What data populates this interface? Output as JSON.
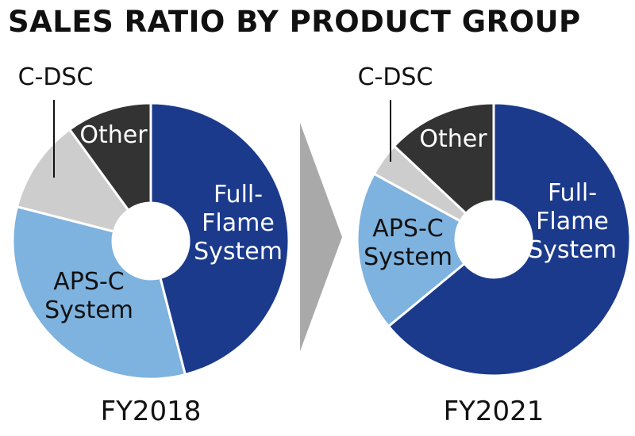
{
  "title": "SALES RATIO BY PRODUCT GROUP",
  "colors": {
    "full_flame": "#1b3a8c",
    "aps_c": "#7eb2df",
    "c_dsc": "#cdcdcd",
    "other": "#333333",
    "arrow": "#a9a9a9",
    "background": "#ffffff"
  },
  "chart_data": [
    {
      "type": "pie",
      "variant": "donut",
      "title": "FY2018",
      "slices": [
        {
          "label": "Full-Flame System",
          "lines": [
            "Full-",
            "Flame",
            "System"
          ],
          "value": 46,
          "color": "#1b3a8c",
          "text_color": "#ffffff"
        },
        {
          "label": "APS-C System",
          "lines": [
            "APS-C",
            "System"
          ],
          "value": 33,
          "color": "#7eb2df",
          "text_color": "#111111"
        },
        {
          "label": "C-DSC",
          "lines": [
            "C-DSC"
          ],
          "value": 11,
          "color": "#cdcdcd",
          "text_color": "#111111"
        },
        {
          "label": "Other",
          "lines": [
            "Other"
          ],
          "value": 10,
          "color": "#333333",
          "text_color": "#ffffff"
        }
      ]
    },
    {
      "type": "pie",
      "variant": "donut",
      "title": "FY2021",
      "slices": [
        {
          "label": "Full-Flame System",
          "lines": [
            "Full-",
            "Flame",
            "System"
          ],
          "value": 64,
          "color": "#1b3a8c",
          "text_color": "#ffffff"
        },
        {
          "label": "APS-C System",
          "lines": [
            "APS-C",
            "System"
          ],
          "value": 19,
          "color": "#7eb2df",
          "text_color": "#111111"
        },
        {
          "label": "C-DSC",
          "lines": [
            "C-DSC"
          ],
          "value": 4,
          "color": "#cdcdcd",
          "text_color": "#111111"
        },
        {
          "label": "Other",
          "lines": [
            "Other"
          ],
          "value": 13,
          "color": "#333333",
          "text_color": "#ffffff"
        }
      ]
    }
  ]
}
